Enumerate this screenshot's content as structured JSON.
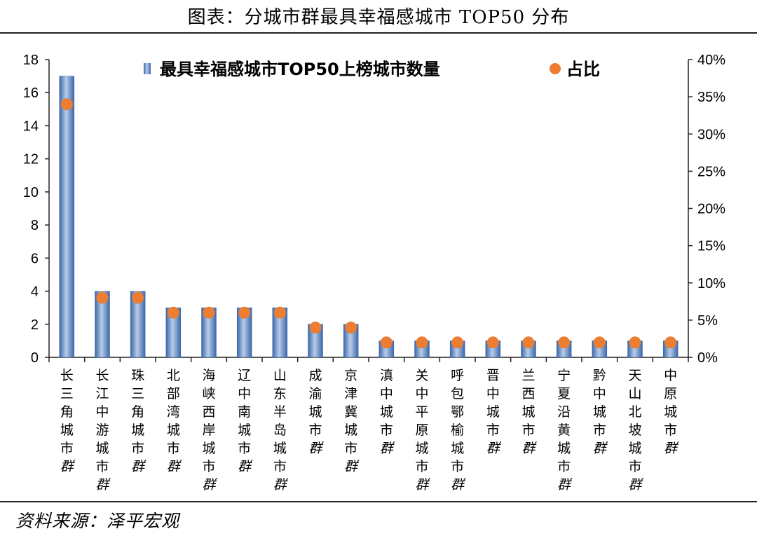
{
  "title": "图表：分城市群最具幸福感城市 TOP50 分布",
  "source": "资料来源：泽平宏观",
  "chart_data": {
    "type": "bar",
    "categories": [
      "长三角城市群",
      "长江中游城市群",
      "珠三角城市群",
      "北部湾城市群",
      "海峡西岸城市群",
      "辽中南城市群",
      "山东半岛城市群",
      "成渝城市群",
      "京津冀城市群",
      "滇中城市群",
      "关中平原城市群",
      "呼包鄂榆城市群",
      "晋中城市群",
      "兰西城市群",
      "宁夏沿黄城市群",
      "黔中城市群",
      "天山北坡城市群",
      "中原城市群"
    ],
    "series": [
      {
        "name": "最具幸福感城市TOP50上榜城市数量",
        "type": "bar",
        "axis": "left",
        "color": "#4f7fbf",
        "values": [
          17,
          4,
          4,
          3,
          3,
          3,
          3,
          2,
          2,
          1,
          1,
          1,
          1,
          1,
          1,
          1,
          1,
          1
        ]
      },
      {
        "name": "占比",
        "type": "scatter",
        "axis": "right",
        "color": "#ed7d31",
        "values": [
          0.34,
          0.08,
          0.08,
          0.06,
          0.06,
          0.06,
          0.06,
          0.04,
          0.04,
          0.02,
          0.02,
          0.02,
          0.02,
          0.02,
          0.02,
          0.02,
          0.02,
          0.02
        ]
      }
    ],
    "ylim": [
      0,
      18
    ],
    "yticks": [
      "0",
      "2",
      "4",
      "6",
      "8",
      "10",
      "12",
      "14",
      "16",
      "18"
    ],
    "y2lim": [
      0,
      0.4
    ],
    "y2ticks": [
      "0%",
      "5%",
      "10%",
      "15%",
      "20%",
      "25%",
      "30%",
      "35%",
      "40%"
    ],
    "legend_position": "top-center",
    "grid": false
  }
}
